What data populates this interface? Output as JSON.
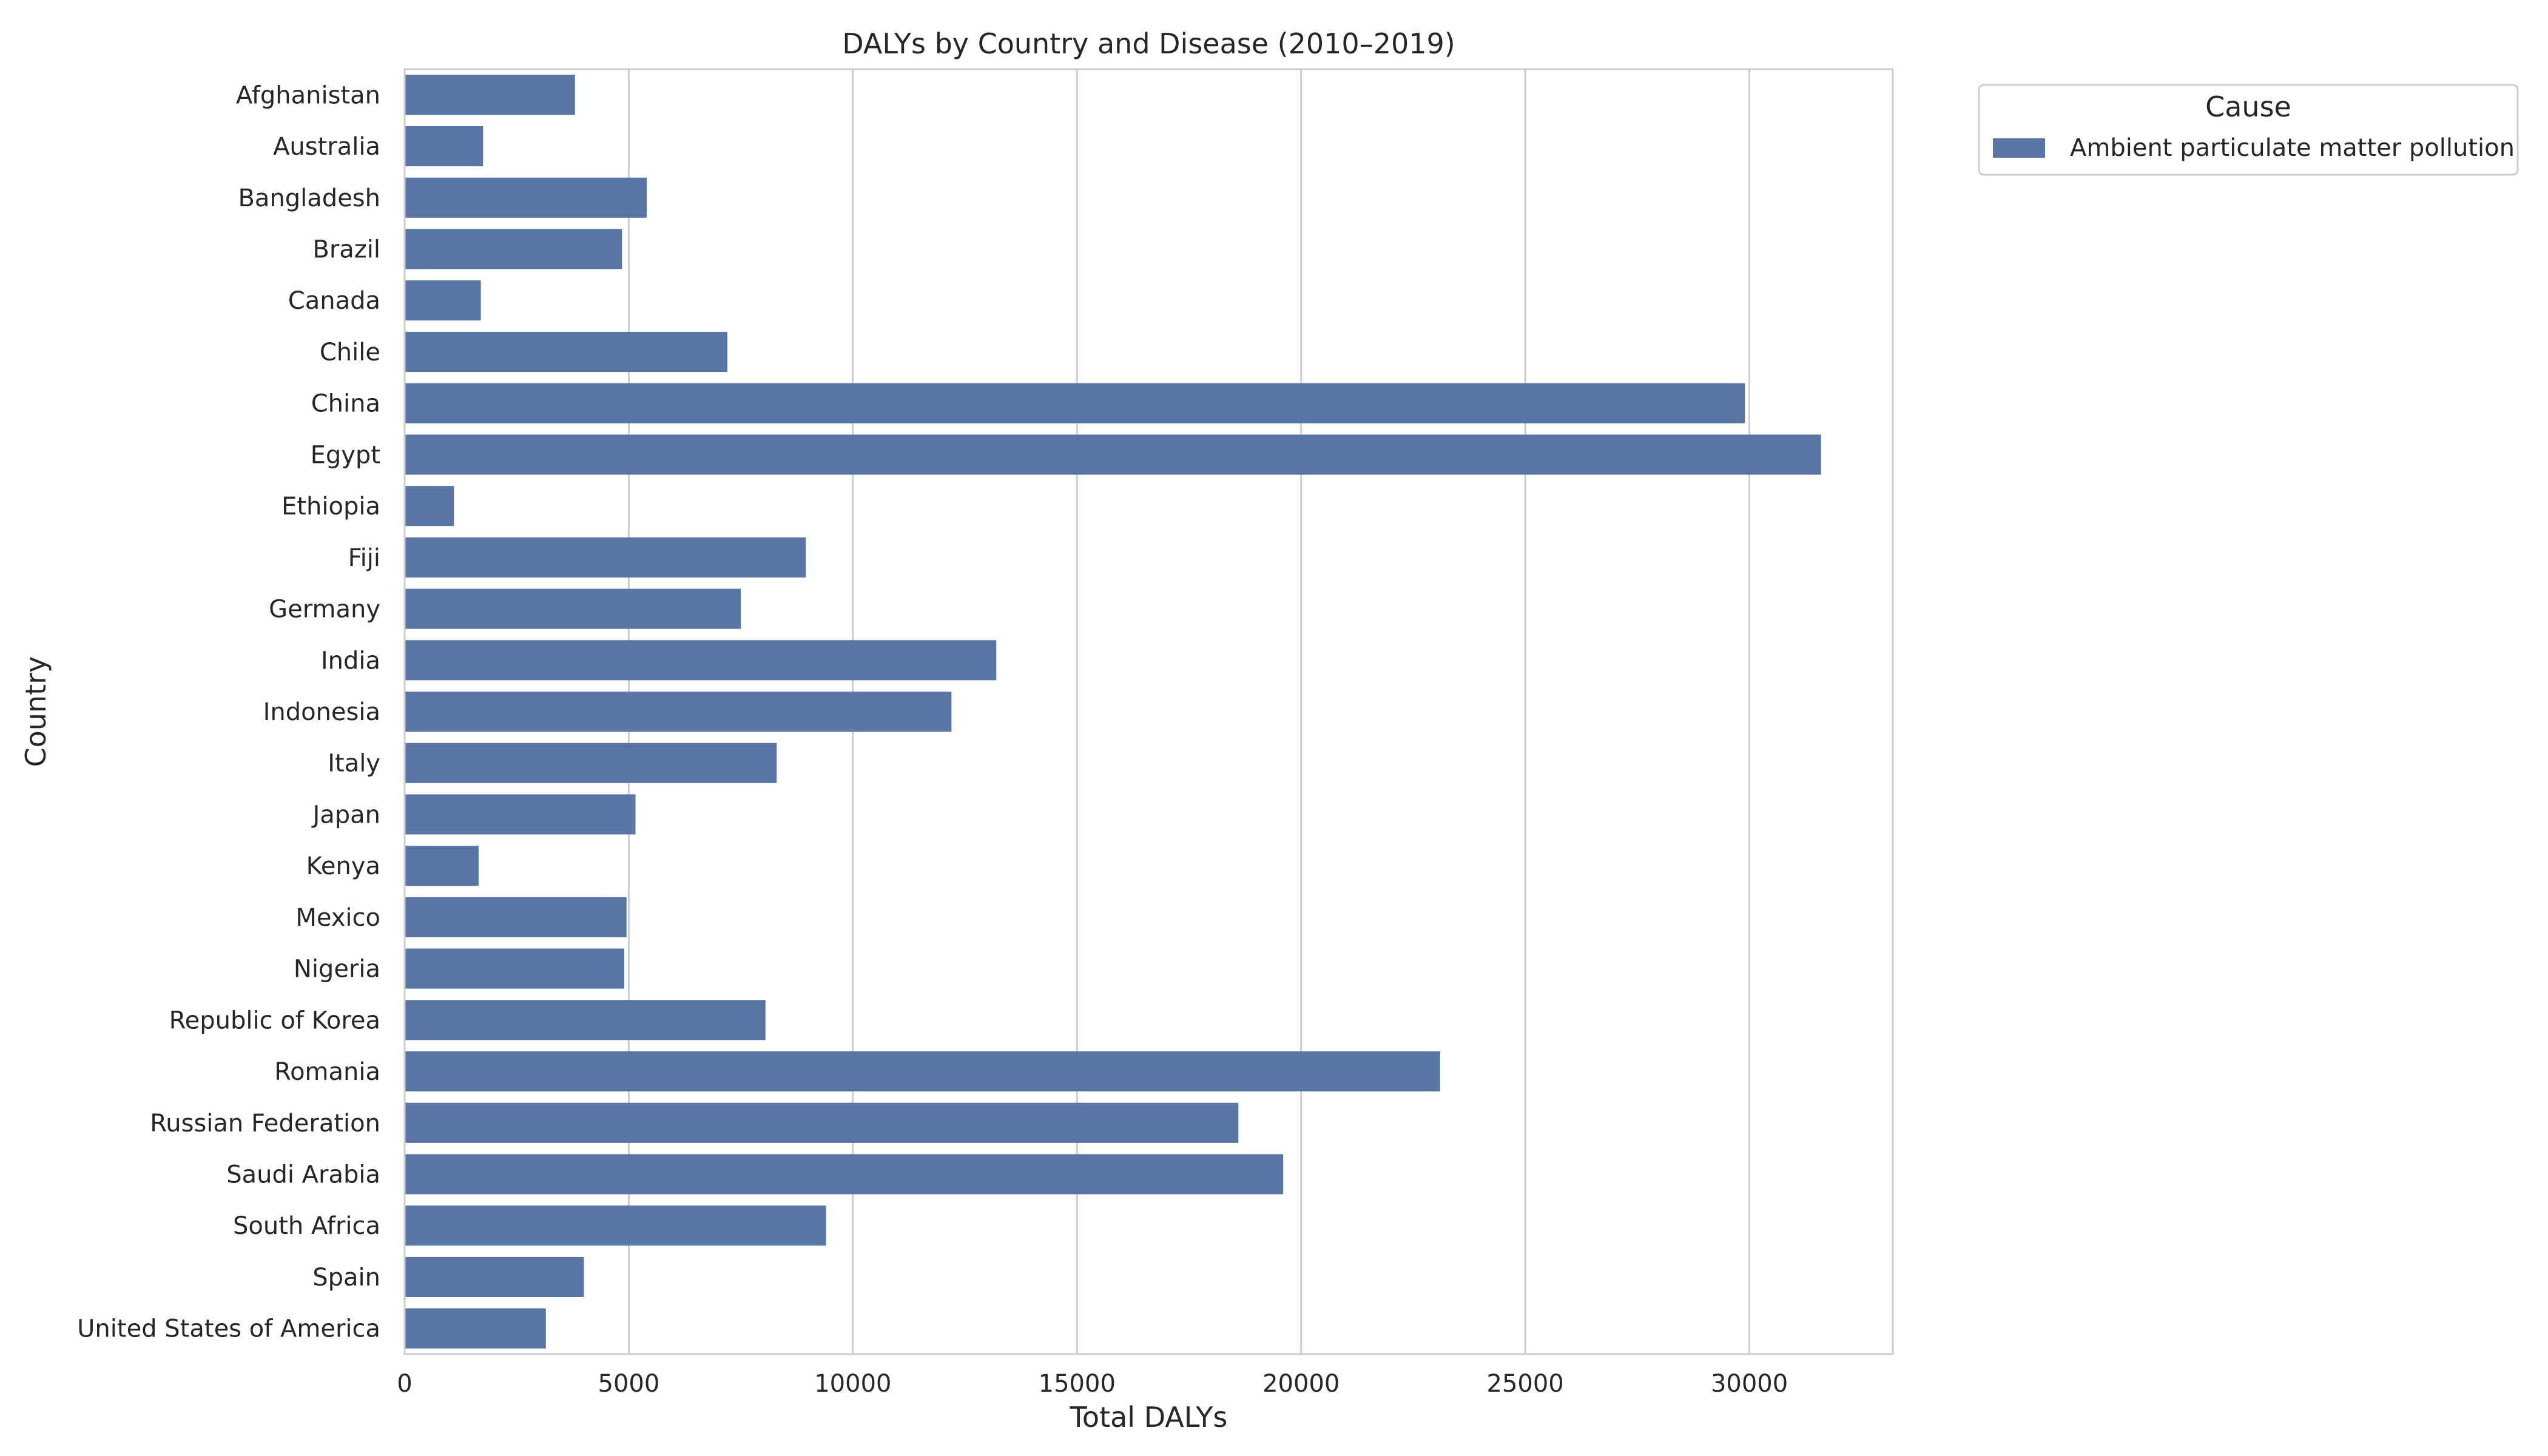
{
  "chart_data": {
    "type": "bar",
    "orientation": "horizontal",
    "title": "DALYs by Country and Disease (2010–2019)",
    "xlabel": "Total DALYs",
    "ylabel": "Country",
    "xlim": [
      0,
      33200
    ],
    "xticks": [
      0,
      5000,
      10000,
      15000,
      20000,
      25000,
      30000
    ],
    "grid": "vertical",
    "legend": {
      "title": "Cause",
      "placement": "outside-top-right"
    },
    "categories": [
      "Afghanistan",
      "Australia",
      "Bangladesh",
      "Brazil",
      "Canada",
      "Chile",
      "China",
      "Egypt",
      "Ethiopia",
      "Fiji",
      "Germany",
      "India",
      "Indonesia",
      "Italy",
      "Japan",
      "Kenya",
      "Mexico",
      "Nigeria",
      "Republic of Korea",
      "Romania",
      "Russian Federation",
      "Saudi Arabia",
      "South Africa",
      "Spain",
      "United States of America"
    ],
    "series": [
      {
        "name": "Ambient particulate matter pollution",
        "color": "#5875a4",
        "values": [
          3800,
          1750,
          5400,
          4850,
          1700,
          7200,
          29900,
          31600,
          1100,
          8950,
          7500,
          13200,
          12200,
          8300,
          5150,
          1650,
          4950,
          4900,
          8050,
          23100,
          18600,
          19600,
          9400,
          4000,
          3150
        ]
      }
    ]
  }
}
